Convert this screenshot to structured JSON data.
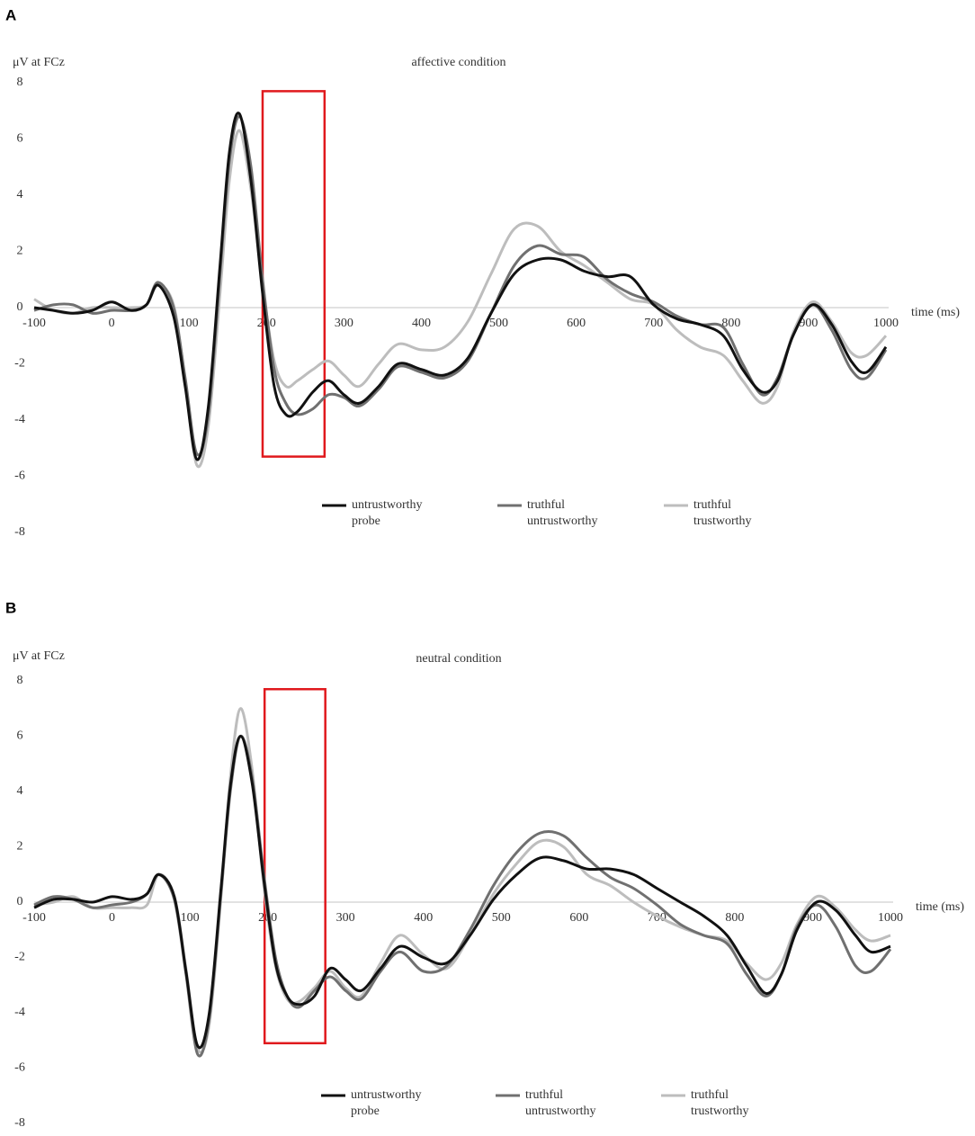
{
  "chart_data": [
    {
      "type": "line",
      "panel": "A",
      "title": "affective condition",
      "y_label": "μV at FCz",
      "x_label": "time (ms)",
      "xlim": [
        -100,
        1000
      ],
      "xticks": [
        -100,
        0,
        100,
        200,
        300,
        400,
        500,
        600,
        700,
        800,
        900,
        1000
      ],
      "ylim": [
        -8,
        8
      ],
      "yticks": [
        -8,
        -6,
        -4,
        -2,
        0,
        2,
        4,
        6,
        8
      ],
      "highlight": {
        "x": [
          195,
          275
        ],
        "y": [
          7.7,
          -5.3
        ],
        "color": "#e0191d"
      },
      "x": [
        -100,
        -75,
        -50,
        -25,
        0,
        25,
        45,
        60,
        80,
        95,
        110,
        125,
        140,
        152,
        165,
        180,
        195,
        210,
        225,
        240,
        260,
        280,
        300,
        320,
        345,
        370,
        400,
        430,
        460,
        490,
        520,
        550,
        580,
        610,
        640,
        670,
        700,
        730,
        760,
        790,
        815,
        840,
        860,
        880,
        905,
        930,
        955,
        975,
        1000
      ],
      "series": [
        {
          "name": "untrustworthy probe",
          "color": "#111111",
          "values": [
            0,
            -0.1,
            -0.2,
            -0.1,
            0.2,
            -0.1,
            0.1,
            0.8,
            -0.3,
            -2.8,
            -5.4,
            -3.5,
            1.5,
            5.5,
            6.9,
            4.5,
            0.5,
            -2.8,
            -3.8,
            -3.7,
            -3.0,
            -2.6,
            -3.1,
            -3.4,
            -2.8,
            -2.0,
            -2.2,
            -2.4,
            -1.8,
            -0.2,
            1.2,
            1.7,
            1.7,
            1.3,
            1.1,
            1.1,
            0.1,
            -0.4,
            -0.6,
            -1.0,
            -2.2,
            -3.0,
            -2.6,
            -1.0,
            0.1,
            -0.6,
            -1.9,
            -2.3,
            -1.4
          ]
        },
        {
          "name": "truthful untrustworthy",
          "color": "#707070",
          "values": [
            -0.1,
            0.1,
            0.1,
            -0.2,
            -0.1,
            -0.1,
            0.1,
            0.9,
            0,
            -2.5,
            -5.2,
            -3.8,
            1.2,
            5.2,
            6.8,
            5.0,
            1.0,
            -2.2,
            -3.4,
            -3.8,
            -3.6,
            -3.1,
            -3.2,
            -3.5,
            -2.9,
            -2.1,
            -2.3,
            -2.5,
            -1.9,
            -0.2,
            1.5,
            2.2,
            1.9,
            1.8,
            1.0,
            0.5,
            0.2,
            -0.3,
            -0.6,
            -0.7,
            -2.0,
            -3.1,
            -2.5,
            -1.0,
            0.1,
            -0.8,
            -2.2,
            -2.5,
            -1.5
          ]
        },
        {
          "name": "truthful trustworthy",
          "color": "#bdbdbd",
          "values": [
            0.3,
            -0.1,
            -0.2,
            0,
            0,
            0,
            0.1,
            0.8,
            0.1,
            -2.6,
            -5.6,
            -4.2,
            0.5,
            4.5,
            6.3,
            4.2,
            0.8,
            -1.9,
            -2.8,
            -2.6,
            -2.2,
            -1.9,
            -2.4,
            -2.8,
            -2.0,
            -1.3,
            -1.5,
            -1.4,
            -0.5,
            1.2,
            2.8,
            2.9,
            2.0,
            1.5,
            0.9,
            0.3,
            0.1,
            -0.8,
            -1.4,
            -1.7,
            -2.6,
            -3.4,
            -2.8,
            -0.9,
            0.2,
            -0.5,
            -1.6,
            -1.7,
            -1.0
          ]
        }
      ]
    },
    {
      "type": "line",
      "panel": "B",
      "title": "neutral condition",
      "y_label": "μV at FCz",
      "x_label": "time (ms)",
      "xlim": [
        -100,
        1000
      ],
      "xticks": [
        -100,
        0,
        100,
        200,
        300,
        400,
        500,
        600,
        700,
        800,
        900,
        1000
      ],
      "ylim": [
        -8,
        8
      ],
      "yticks": [
        -8,
        -6,
        -4,
        -2,
        0,
        2,
        4,
        6,
        8
      ],
      "highlight": {
        "x": [
          196,
          274
        ],
        "y": [
          7.7,
          -5.1
        ],
        "color": "#e0191d"
      },
      "x": [
        -100,
        -75,
        -50,
        -25,
        0,
        25,
        45,
        60,
        80,
        95,
        110,
        125,
        140,
        152,
        165,
        180,
        195,
        210,
        225,
        240,
        260,
        280,
        300,
        320,
        345,
        370,
        400,
        430,
        460,
        490,
        520,
        550,
        580,
        610,
        640,
        670,
        700,
        730,
        760,
        790,
        815,
        840,
        860,
        880,
        905,
        930,
        955,
        975,
        1000
      ],
      "series": [
        {
          "name": "untrustworthy probe",
          "color": "#111111",
          "values": [
            -0.2,
            0.1,
            0.1,
            0,
            0.2,
            0.1,
            0.3,
            1.0,
            0.2,
            -2.5,
            -5.2,
            -4.0,
            0.5,
            4.2,
            6.0,
            4.3,
            0.8,
            -2.2,
            -3.4,
            -3.7,
            -3.4,
            -2.4,
            -2.8,
            -3.2,
            -2.4,
            -1.6,
            -2.0,
            -2.2,
            -1.2,
            0.1,
            1.0,
            1.6,
            1.5,
            1.2,
            1.2,
            1.0,
            0.5,
            0.0,
            -0.5,
            -1.2,
            -2.3,
            -3.3,
            -2.6,
            -1.0,
            0.0,
            -0.3,
            -1.2,
            -1.8,
            -1.6
          ]
        },
        {
          "name": "truthful untrustworthy",
          "color": "#707070",
          "values": [
            -0.1,
            0.2,
            0.1,
            -0.2,
            -0.1,
            0,
            0.3,
            1.0,
            0.1,
            -2.6,
            -5.5,
            -4.2,
            0.3,
            4.0,
            6.0,
            4.5,
            1.0,
            -2.0,
            -3.4,
            -3.8,
            -3.2,
            -2.7,
            -3.2,
            -3.5,
            -2.5,
            -1.8,
            -2.5,
            -2.3,
            -1.0,
            0.6,
            1.8,
            2.5,
            2.4,
            1.6,
            0.9,
            0.5,
            -0.1,
            -0.8,
            -1.2,
            -1.5,
            -2.6,
            -3.4,
            -2.6,
            -0.9,
            -0.1,
            -0.9,
            -2.3,
            -2.5,
            -1.7
          ]
        },
        {
          "name": "truthful trustworthy",
          "color": "#bdbdbd",
          "values": [
            -0.1,
            0.0,
            0.2,
            -0.2,
            -0.2,
            -0.2,
            -0.1,
            1.0,
            0.2,
            -2.4,
            -5.3,
            -4.4,
            0.2,
            4.5,
            7.0,
            4.8,
            0.6,
            -2.3,
            -3.5,
            -3.6,
            -3.1,
            -2.5,
            -3.1,
            -3.4,
            -2.2,
            -1.2,
            -1.9,
            -2.4,
            -1.2,
            0.3,
            1.4,
            2.2,
            2.0,
            1.0,
            0.6,
            0.0,
            -0.5,
            -0.9,
            -1.2,
            -1.4,
            -2.2,
            -2.8,
            -2.2,
            -0.8,
            0.2,
            -0.2,
            -1.0,
            -1.4,
            -1.2
          ]
        }
      ]
    }
  ]
}
